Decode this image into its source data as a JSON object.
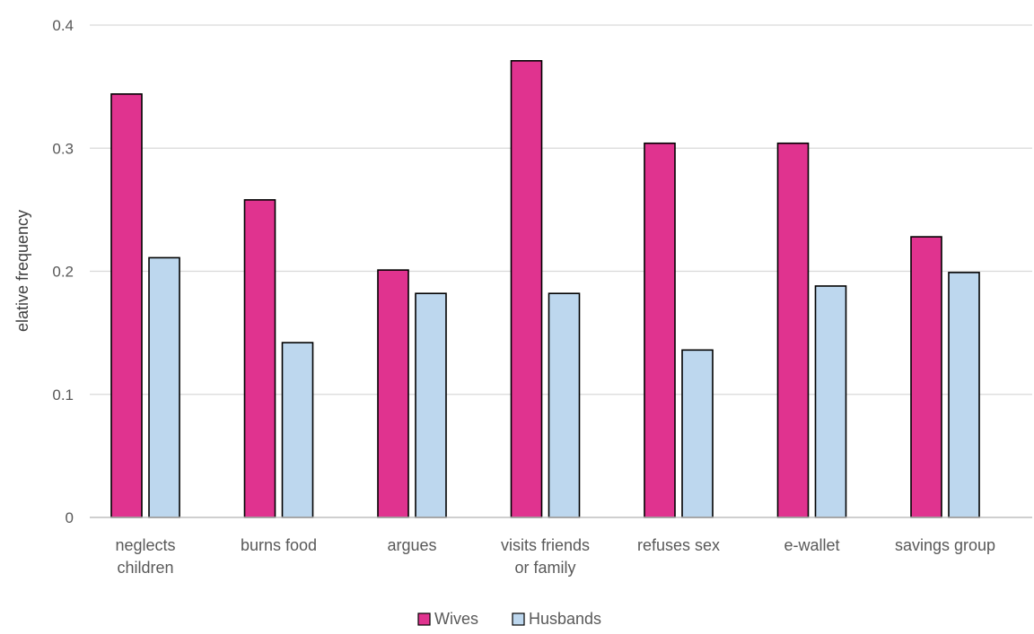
{
  "chart_data": {
    "type": "bar",
    "title": "",
    "xlabel": "",
    "ylabel": "elative frequency",
    "ylim": [
      0,
      0.4
    ],
    "yticks": [
      "0",
      "0.1",
      "0.2",
      "0.3",
      "0.4"
    ],
    "ytick_values": [
      0,
      0.1,
      0.2,
      0.3,
      0.4
    ],
    "grid": true,
    "legend_position": "bottom",
    "categories": [
      [
        "neglects",
        "children"
      ],
      [
        "burns food"
      ],
      [
        "argues"
      ],
      [
        "visits friends",
        "or family"
      ],
      [
        "refuses sex"
      ],
      [
        "e-wallet"
      ],
      [
        "savings group"
      ]
    ],
    "series": [
      {
        "name": "Wives",
        "color": "#e0338f",
        "values": [
          0.344,
          0.258,
          0.201,
          0.371,
          0.304,
          0.304,
          0.228
        ]
      },
      {
        "name": "Husbands",
        "color": "#bdd7ee",
        "values": [
          0.211,
          0.142,
          0.182,
          0.182,
          0.136,
          0.188,
          0.199
        ]
      }
    ]
  }
}
